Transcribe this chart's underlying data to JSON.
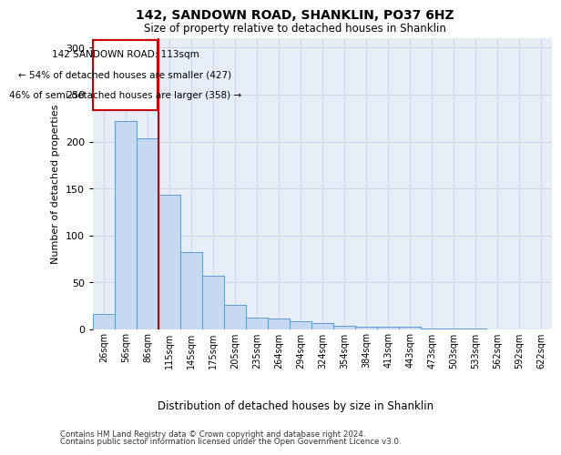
{
  "title": "142, SANDOWN ROAD, SHANKLIN, PO37 6HZ",
  "subtitle": "Size of property relative to detached houses in Shanklin",
  "xlabel": "Distribution of detached houses by size in Shanklin",
  "ylabel": "Number of detached properties",
  "footer1": "Contains HM Land Registry data © Crown copyright and database right 2024.",
  "footer2": "Contains public sector information licensed under the Open Government Licence v3.0.",
  "bar_labels": [
    "26sqm",
    "56sqm",
    "86sqm",
    "115sqm",
    "145sqm",
    "175sqm",
    "205sqm",
    "235sqm",
    "264sqm",
    "294sqm",
    "324sqm",
    "354sqm",
    "384sqm",
    "413sqm",
    "443sqm",
    "473sqm",
    "503sqm",
    "533sqm",
    "562sqm",
    "592sqm",
    "622sqm"
  ],
  "bar_values": [
    16,
    222,
    203,
    143,
    82,
    57,
    26,
    13,
    12,
    9,
    7,
    4,
    3,
    3,
    3,
    1,
    1,
    1,
    0,
    0,
    0
  ],
  "bar_color": "#c6d9f0",
  "bar_edge_color": "#5b9bd5",
  "annotation_line1": "142 SANDOWN ROAD: 113sqm",
  "annotation_line2": "← 54% of detached houses are smaller (427)",
  "annotation_line3": "46% of semi-detached houses are larger (358) →",
  "annotation_box_color": "#ffffff",
  "annotation_box_edge": "#cc0000",
  "vline_color": "#cc0000",
  "grid_color": "#d0d8e8",
  "background_color": "#e8eef8",
  "ylim": [
    0,
    310
  ],
  "yticks": [
    0,
    50,
    100,
    150,
    200,
    250,
    300
  ]
}
